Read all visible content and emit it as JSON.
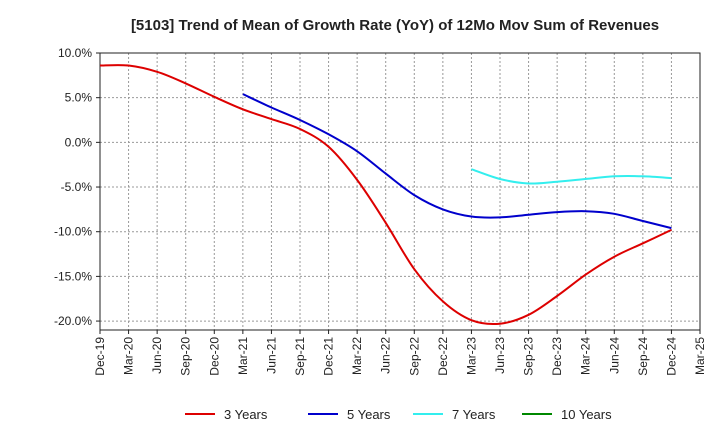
{
  "chart_data": {
    "type": "line",
    "title": "[5103]  Trend of Mean of Growth Rate (YoY) of 12Mo Mov Sum of Revenues",
    "xlabel": "",
    "ylabel": "",
    "ylim": [
      -21,
      10
    ],
    "yticks": [
      10,
      5,
      0,
      -5,
      -10,
      -15,
      -20
    ],
    "ytick_labels": [
      "10.0%",
      "5.0%",
      "0.0%",
      "-5.0%",
      "-10.0%",
      "-15.0%",
      "-20.0%"
    ],
    "x_categories": [
      "Dec-19",
      "Mar-20",
      "Jun-20",
      "Sep-20",
      "Dec-20",
      "Mar-21",
      "Jun-21",
      "Sep-21",
      "Dec-21",
      "Mar-22",
      "Jun-22",
      "Sep-22",
      "Dec-22",
      "Mar-23",
      "Jun-23",
      "Sep-23",
      "Dec-23",
      "Mar-24",
      "Jun-24",
      "Sep-24",
      "Dec-24",
      "Mar-25"
    ],
    "grid": true,
    "legend_position": "bottom",
    "series": [
      {
        "name": "3 Years",
        "color": "#dd0000",
        "values": [
          8.6,
          8.6,
          7.9,
          6.6,
          5.1,
          3.7,
          2.6,
          1.5,
          -0.5,
          -4.2,
          -9.0,
          -14.2,
          -17.8,
          -19.9,
          -20.3,
          -19.3,
          -17.2,
          -14.8,
          -12.8,
          -11.3,
          -9.8,
          null
        ]
      },
      {
        "name": "5 Years",
        "color": "#0000cc",
        "values": [
          null,
          null,
          null,
          null,
          null,
          5.4,
          3.9,
          2.5,
          0.9,
          -1.0,
          -3.5,
          -5.9,
          -7.5,
          -8.3,
          -8.4,
          -8.1,
          -7.8,
          -7.7,
          -8.0,
          -8.8,
          -9.6,
          null
        ]
      },
      {
        "name": "7 Years",
        "color": "#33eeee",
        "values": [
          null,
          null,
          null,
          null,
          null,
          null,
          null,
          null,
          null,
          null,
          null,
          null,
          null,
          -3.0,
          -4.1,
          -4.6,
          -4.4,
          -4.1,
          -3.8,
          -3.8,
          -4.0,
          null
        ]
      },
      {
        "name": "10 Years",
        "color": "#008800",
        "values": [
          null,
          null,
          null,
          null,
          null,
          null,
          null,
          null,
          null,
          null,
          null,
          null,
          null,
          null,
          null,
          null,
          null,
          null,
          null,
          null,
          null,
          null
        ]
      }
    ]
  }
}
